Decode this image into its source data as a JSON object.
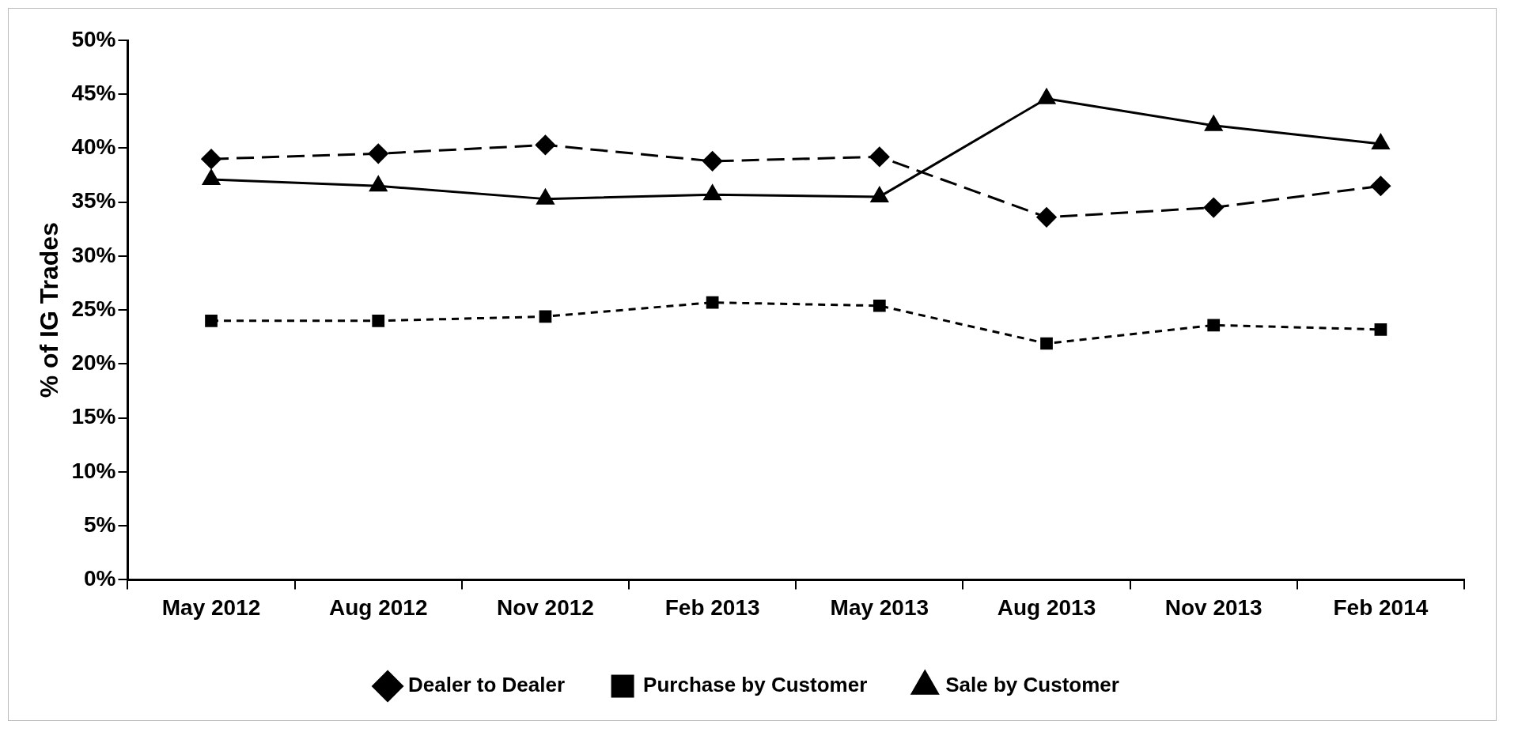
{
  "chart_data": {
    "type": "line",
    "ylabel": "% of IG Trades",
    "categories": [
      "May 2012",
      "Aug 2012",
      "Nov 2012",
      "Feb 2013",
      "May 2013",
      "Aug 2013",
      "Nov 2013",
      "Feb 2014"
    ],
    "series": [
      {
        "name": "Dealer to Dealer",
        "color": "#000000",
        "marker": "diamond",
        "line_style": "dashed",
        "values": [
          39.0,
          39.5,
          40.3,
          38.8,
          39.2,
          33.6,
          34.5,
          36.5
        ]
      },
      {
        "name": "Purchase by Customer",
        "color": "#000000",
        "marker": "square",
        "line_style": "dotted",
        "values": [
          24.0,
          24.0,
          24.4,
          25.7,
          25.4,
          21.9,
          23.6,
          23.2
        ]
      },
      {
        "name": "Sale by Customer",
        "color": "#000000",
        "marker": "triangle",
        "line_style": "solid",
        "values": [
          37.1,
          36.5,
          35.3,
          35.7,
          35.5,
          44.6,
          42.1,
          40.4
        ]
      }
    ],
    "ylim": [
      0,
      50
    ],
    "yticks": [
      {
        "value": 0,
        "label": "0%"
      },
      {
        "value": 5,
        "label": "5%"
      },
      {
        "value": 10,
        "label": "10%"
      },
      {
        "value": 15,
        "label": "15%"
      },
      {
        "value": 20,
        "label": "20%"
      },
      {
        "value": 25,
        "label": "25%"
      },
      {
        "value": 30,
        "label": "30%"
      },
      {
        "value": 35,
        "label": "35%"
      },
      {
        "value": 40,
        "label": "40%"
      },
      {
        "value": 45,
        "label": "45%"
      },
      {
        "value": 50,
        "label": "50%"
      }
    ],
    "grid": false,
    "legend": "bottom"
  }
}
